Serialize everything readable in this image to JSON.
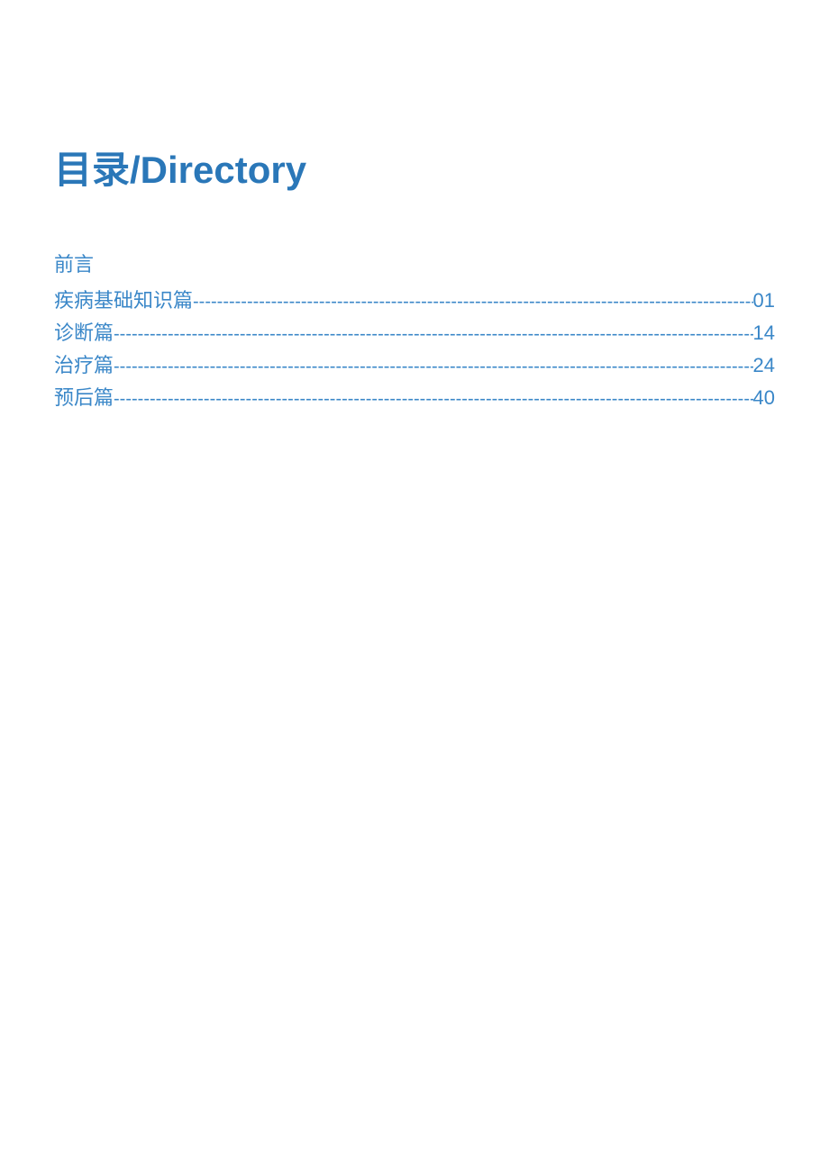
{
  "colors": {
    "title": "#2a77b8",
    "text": "#3a87c8",
    "background": "#ffffff"
  },
  "typography": {
    "title_fontsize": 42,
    "entry_fontsize": 22,
    "title_fontweight": "bold"
  },
  "title": "目录/Directory",
  "toc": {
    "preface": "前言",
    "entries": [
      {
        "label": "疾病基础知识篇",
        "page": "01"
      },
      {
        "label": "诊断篇",
        "page": "14"
      },
      {
        "label": "治疗篇",
        "page": "24"
      },
      {
        "label": "预后篇",
        "page": "40"
      }
    ]
  }
}
